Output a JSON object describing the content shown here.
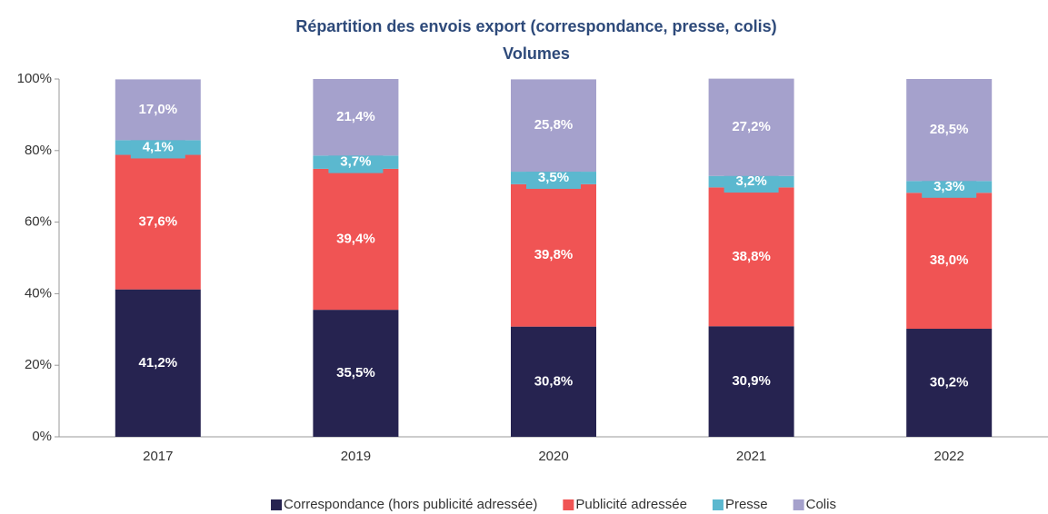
{
  "chart_data": {
    "type": "stacked_bar",
    "title": "Répartition des envois export (correspondance, presse, colis)",
    "subtitle": "Volumes",
    "categories": [
      "2017",
      "2019",
      "2020",
      "2021",
      "2022"
    ],
    "series": [
      {
        "name": "Correspondance (hors publicité adressée)",
        "color": "#262350",
        "values": [
          41.2,
          35.5,
          30.8,
          30.9,
          30.2
        ],
        "value_labels": [
          "41,2%",
          "35,5%",
          "30,8%",
          "30,9%",
          "30,2%"
        ]
      },
      {
        "name": "Publicité adressée",
        "color": "#f05454",
        "values": [
          37.6,
          39.4,
          39.8,
          38.8,
          38.0
        ],
        "value_labels": [
          "37,6%",
          "39,4%",
          "39,8%",
          "38,8%",
          "38,0%"
        ]
      },
      {
        "name": "Presse",
        "color": "#5bb8cf",
        "values": [
          4.1,
          3.7,
          3.5,
          3.2,
          3.3
        ],
        "value_labels": [
          "4,1%",
          "3,7%",
          "3,5%",
          "3,2%",
          "3,3%"
        ]
      },
      {
        "name": "Colis",
        "color": "#a5a1cc",
        "values": [
          17.0,
          21.4,
          25.8,
          27.2,
          28.5
        ],
        "value_labels": [
          "17,0%",
          "21,4%",
          "25,8%",
          "27,2%",
          "28,5%"
        ]
      }
    ],
    "ylim": [
      0,
      100
    ],
    "yticks": [
      {
        "value": 0,
        "label": "0%"
      },
      {
        "value": 20,
        "label": "20%"
      },
      {
        "value": 40,
        "label": "40%"
      },
      {
        "value": 60,
        "label": "60%"
      },
      {
        "value": 80,
        "label": "80%"
      },
      {
        "value": 100,
        "label": "100%"
      }
    ],
    "legend": "bottom"
  }
}
